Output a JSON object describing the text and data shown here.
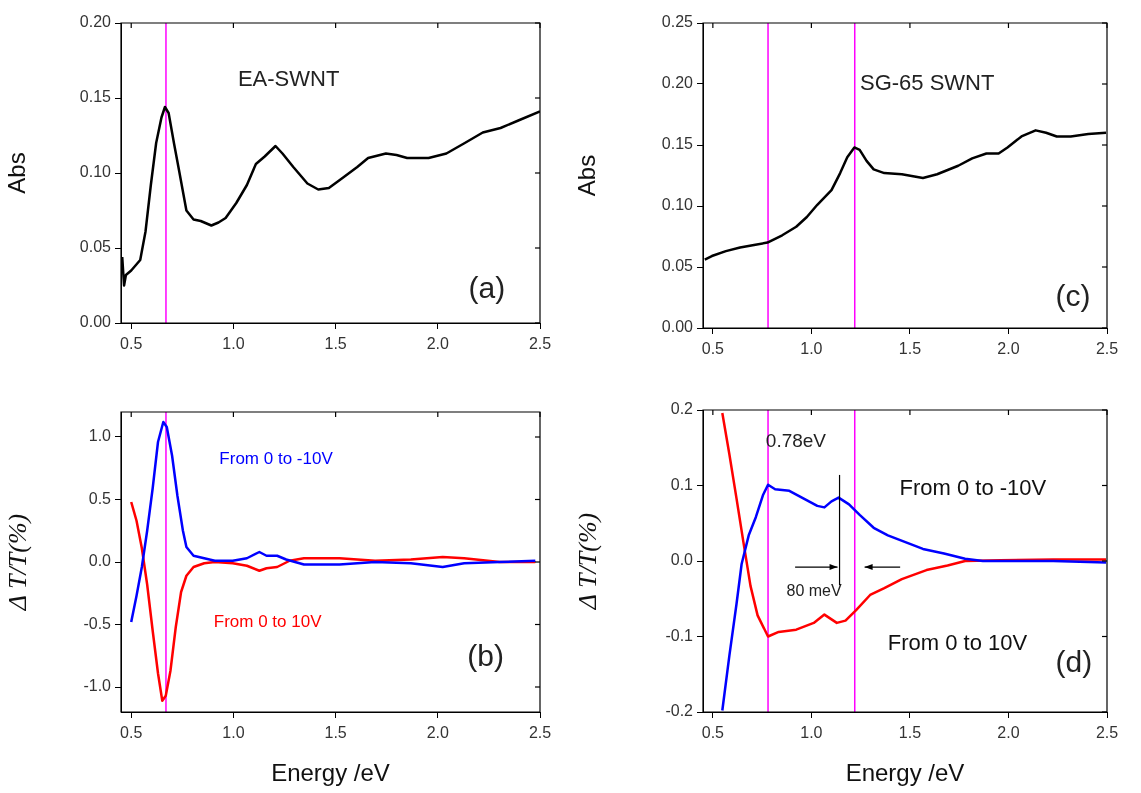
{
  "chart_data": [
    {
      "type": "line",
      "ylabel": "Abs",
      "xlim": [
        0.45,
        2.5
      ],
      "xticks": [
        {
          "value": 0.5,
          "label": "0.5"
        },
        {
          "value": 1,
          "label": "1.0"
        },
        {
          "value": 1.5,
          "label": "1.5"
        },
        {
          "value": 2,
          "label": "2.0"
        },
        {
          "value": 2.5,
          "label": "2.5"
        }
      ],
      "ylim": [
        0,
        0.2
      ],
      "yticks": [
        {
          "value": 0,
          "label": "0.00"
        },
        {
          "value": 0.05,
          "label": "0.05"
        },
        {
          "value": 0.1,
          "label": "0.10"
        },
        {
          "value": 0.15,
          "label": "0.15"
        },
        {
          "value": 0.2,
          "label": "0.20"
        }
      ],
      "marker": "none",
      "legend": false,
      "annotations": [
        "EA-SWNT",
        "(a)"
      ],
      "ref_lines": [
        {
          "axis": "x",
          "value": 0.67,
          "color": "#ff00ff"
        }
      ],
      "series": [
        {
          "color": "#000000",
          "x": [
            0.456,
            0.465,
            0.474,
            0.5,
            0.544,
            0.57,
            0.596,
            0.622,
            0.648,
            0.665,
            0.683,
            0.709,
            0.735,
            0.77,
            0.805,
            0.84,
            0.892,
            0.927,
            0.962,
            1.014,
            1.066,
            1.11,
            1.153,
            1.206,
            1.24,
            1.293,
            1.362,
            1.415,
            1.467,
            1.537,
            1.606,
            1.659,
            1.746,
            1.798,
            1.85,
            1.955,
            2.042,
            2.132,
            2.22,
            2.307,
            2.394,
            2.5
          ],
          "values": [
            0.044,
            0.025,
            0.032,
            0.035,
            0.042,
            0.061,
            0.092,
            0.12,
            0.137,
            0.144,
            0.14,
            0.12,
            0.101,
            0.075,
            0.069,
            0.068,
            0.065,
            0.067,
            0.07,
            0.08,
            0.092,
            0.106,
            0.111,
            0.118,
            0.113,
            0.104,
            0.093,
            0.089,
            0.09,
            0.097,
            0.104,
            0.11,
            0.113,
            0.112,
            0.11,
            0.11,
            0.113,
            0.12,
            0.127,
            0.13,
            0.135,
            0.141
          ]
        }
      ]
    },
    {
      "type": "line",
      "xlabel": "Energy /eV",
      "ylabel": "Δ T/T(%)",
      "xlim": [
        0.45,
        2.5
      ],
      "xticks": [
        {
          "value": 0.5,
          "label": "0.5"
        },
        {
          "value": 1,
          "label": "1.0"
        },
        {
          "value": 1.5,
          "label": "1.5"
        },
        {
          "value": 2,
          "label": "2.0"
        },
        {
          "value": 2.5,
          "label": "2.5"
        }
      ],
      "ylim": [
        -1.2,
        1.2
      ],
      "yticks": [
        {
          "value": -1,
          "label": "-1.0"
        },
        {
          "value": -0.5,
          "label": "-0.5"
        },
        {
          "value": 0,
          "label": "0.0"
        },
        {
          "value": 0.5,
          "label": "0.5"
        },
        {
          "value": 1,
          "label": "1.0"
        }
      ],
      "marker": "none",
      "legend": false,
      "annotations": [
        "(b)"
      ],
      "ref_lines": [
        {
          "axis": "x",
          "value": 0.67,
          "color": "#ff00ff"
        }
      ],
      "series": [
        {
          "name": "From 0 to -10V",
          "color": "#0000ff",
          "x": [
            0.5,
            0.526,
            0.552,
            0.578,
            0.605,
            0.631,
            0.657,
            0.674,
            0.7,
            0.726,
            0.753,
            0.77,
            0.805,
            0.857,
            0.909,
            0.997,
            1.066,
            1.127,
            1.162,
            1.214,
            1.258,
            1.345,
            1.519,
            1.693,
            1.868,
            2.024,
            2.129,
            2.303,
            2.477
          ],
          "values": [
            -0.48,
            -0.27,
            -0.04,
            0.25,
            0.59,
            0.96,
            1.12,
            1.08,
            0.85,
            0.53,
            0.25,
            0.12,
            0.05,
            0.03,
            0.01,
            0.01,
            0.03,
            0.08,
            0.05,
            0.05,
            0.02,
            -0.02,
            -0.02,
            0,
            -0.01,
            -0.04,
            -0.01,
            0,
            0.01
          ]
        },
        {
          "name": "From 0 to 10V",
          "color": "#ff0000",
          "x": [
            0.5,
            0.526,
            0.552,
            0.578,
            0.605,
            0.631,
            0.652,
            0.669,
            0.692,
            0.718,
            0.744,
            0.77,
            0.805,
            0.857,
            0.909,
            0.997,
            1.066,
            1.127,
            1.162,
            1.214,
            1.275,
            1.345,
            1.519,
            1.693,
            1.868,
            2.024,
            2.129,
            2.303,
            2.477
          ],
          "values": [
            0.48,
            0.33,
            0.11,
            -0.18,
            -0.55,
            -0.89,
            -1.11,
            -1.07,
            -0.87,
            -0.52,
            -0.24,
            -0.11,
            -0.04,
            -0.01,
            0,
            -0.01,
            -0.03,
            -0.07,
            -0.05,
            -0.04,
            0.01,
            0.03,
            0.03,
            0.01,
            0.02,
            0.04,
            0.03,
            0,
            0
          ]
        }
      ]
    },
    {
      "type": "line",
      "ylabel": "Abs",
      "xlim": [
        0.45,
        2.5
      ],
      "xticks": [
        {
          "value": 0.5,
          "label": "0.5"
        },
        {
          "value": 1,
          "label": "1.0"
        },
        {
          "value": 1.5,
          "label": "1.5"
        },
        {
          "value": 2,
          "label": "2.0"
        },
        {
          "value": 2.5,
          "label": "2.5"
        }
      ],
      "ylim": [
        0,
        0.25
      ],
      "yticks": [
        {
          "value": 0,
          "label": "0.00"
        },
        {
          "value": 0.05,
          "label": "0.05"
        },
        {
          "value": 0.1,
          "label": "0.10"
        },
        {
          "value": 0.15,
          "label": "0.15"
        },
        {
          "value": 0.2,
          "label": "0.20"
        },
        {
          "value": 0.25,
          "label": "0.25"
        }
      ],
      "marker": "none",
      "legend": false,
      "annotations": [
        "SG-65 SWNT",
        "(c)"
      ],
      "ref_lines": [
        {
          "axis": "x",
          "value": 0.78,
          "color": "#ff00ff"
        },
        {
          "axis": "x",
          "value": 1.22,
          "color": "#ff00ff"
        }
      ],
      "series": [
        {
          "color": "#000000",
          "x": [
            0.459,
            0.495,
            0.566,
            0.638,
            0.709,
            0.777,
            0.852,
            0.923,
            0.977,
            1.03,
            1.102,
            1.146,
            1.182,
            1.218,
            1.245,
            1.28,
            1.316,
            1.37,
            1.459,
            1.566,
            1.638,
            1.745,
            1.816,
            1.888,
            1.95,
            1.995,
            2.066,
            2.138,
            2.191,
            2.245,
            2.316,
            2.405,
            2.495
          ],
          "values": [
            0.056,
            0.059,
            0.063,
            0.066,
            0.068,
            0.07,
            0.076,
            0.083,
            0.091,
            0.101,
            0.113,
            0.127,
            0.14,
            0.148,
            0.146,
            0.137,
            0.13,
            0.127,
            0.126,
            0.123,
            0.126,
            0.133,
            0.139,
            0.143,
            0.143,
            0.148,
            0.157,
            0.162,
            0.16,
            0.157,
            0.157,
            0.159,
            0.16
          ]
        }
      ]
    },
    {
      "type": "line",
      "xlabel": "Energy /eV",
      "ylabel": "Δ T/T(%)",
      "xlim": [
        0.45,
        2.5
      ],
      "xticks": [
        {
          "value": 0.5,
          "label": "0.5"
        },
        {
          "value": 1,
          "label": "1.0"
        },
        {
          "value": 1.5,
          "label": "1.5"
        },
        {
          "value": 2,
          "label": "2.0"
        },
        {
          "value": 2.5,
          "label": "2.5"
        }
      ],
      "ylim": [
        -0.2,
        0.2
      ],
      "yticks": [
        -0.2,
        -0.1,
        {
          "value": 0,
          "label": "0.0"
        },
        0.1,
        0.2
      ],
      "marker": "none",
      "legend": false,
      "annotations": [
        "0.78eV",
        "80 meV",
        "(d)"
      ],
      "ref_lines": [
        {
          "axis": "x",
          "value": 0.78,
          "color": "#ff00ff"
        },
        {
          "axis": "x",
          "value": 1.22,
          "color": "#ff00ff"
        }
      ],
      "series": [
        {
          "name": "From 0 to -10V",
          "color": "#0000ff",
          "x": [
            0.548,
            0.584,
            0.62,
            0.646,
            0.682,
            0.718,
            0.754,
            0.78,
            0.816,
            0.888,
            0.959,
            1.03,
            1.066,
            1.102,
            1.138,
            1.191,
            1.245,
            1.316,
            1.388,
            1.477,
            1.566,
            1.673,
            1.78,
            1.87,
            2.048,
            2.227,
            2.495
          ],
          "values": [
            -0.198,
            -0.125,
            -0.057,
            -0.004,
            0.034,
            0.058,
            0.087,
            0.101,
            0.095,
            0.093,
            0.083,
            0.073,
            0.071,
            0.079,
            0.084,
            0.075,
            0.061,
            0.044,
            0.034,
            0.025,
            0.016,
            0.01,
            0.003,
            0,
            0,
            0,
            -0.002
          ]
        },
        {
          "name": "From 0 to 10V",
          "color": "#ff0000",
          "x": [
            0.548,
            0.584,
            0.62,
            0.655,
            0.691,
            0.727,
            0.78,
            0.834,
            0.923,
            1.012,
            1.066,
            1.129,
            1.173,
            1.227,
            1.298,
            1.37,
            1.459,
            1.584,
            1.691,
            1.78,
            1.959,
            2.227,
            2.495
          ],
          "values": [
            0.196,
            0.141,
            0.083,
            0.025,
            -0.033,
            -0.072,
            -0.1,
            -0.094,
            -0.091,
            -0.082,
            -0.071,
            -0.082,
            -0.079,
            -0.065,
            -0.045,
            -0.036,
            -0.024,
            -0.012,
            -0.006,
            0,
            0.001,
            0.002,
            0.002
          ]
        }
      ]
    }
  ]
}
